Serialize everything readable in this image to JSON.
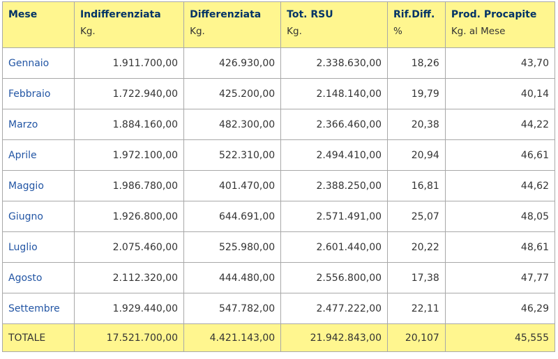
{
  "headers": [
    {
      "title": "Mese",
      "unit": ""
    },
    {
      "title": "Indifferenziata",
      "unit": "Kg."
    },
    {
      "title": "Differenziata",
      "unit": "Kg."
    },
    {
      "title": "Tot. RSU",
      "unit": "Kg."
    },
    {
      "title": "Rif.Diff.",
      "unit": "%"
    },
    {
      "title": "Prod. Procapite",
      "unit": "Kg. al Mese"
    }
  ],
  "rows": [
    {
      "mese": "Gennaio",
      "indiff": "1.911.700,00",
      "diff": "426.930,00",
      "tot": "2.338.630,00",
      "rif": "18,26",
      "prod": "43,70"
    },
    {
      "mese": "Febbraio",
      "indiff": "1.722.940,00",
      "diff": "425.200,00",
      "tot": "2.148.140,00",
      "rif": "19,79",
      "prod": "40,14"
    },
    {
      "mese": "Marzo",
      "indiff": "1.884.160,00",
      "diff": "482.300,00",
      "tot": "2.366.460,00",
      "rif": "20,38",
      "prod": "44,22"
    },
    {
      "mese": "Aprile",
      "indiff": "1.972.100,00",
      "diff": "522.310,00",
      "tot": "2.494.410,00",
      "rif": "20,94",
      "prod": "46,61"
    },
    {
      "mese": "Maggio",
      "indiff": "1.986.780,00",
      "diff": "401.470,00",
      "tot": "2.388.250,00",
      "rif": "16,81",
      "prod": "44,62"
    },
    {
      "mese": "Giugno",
      "indiff": "1.926.800,00",
      "diff": "644.691,00",
      "tot": "2.571.491,00",
      "rif": "25,07",
      "prod": "48,05"
    },
    {
      "mese": "Luglio",
      "indiff": "2.075.460,00",
      "diff": "525.980,00",
      "tot": "2.601.440,00",
      "rif": "20,22",
      "prod": "48,61"
    },
    {
      "mese": "Agosto",
      "indiff": "2.112.320,00",
      "diff": "444.480,00",
      "tot": "2.556.800,00",
      "rif": "17,38",
      "prod": "47,77"
    },
    {
      "mese": "Settembre",
      "indiff": "1.929.440,00",
      "diff": "547.782,00",
      "tot": "2.477.222,00",
      "rif": "22,11",
      "prod": "46,29"
    }
  ],
  "totals": {
    "label": "TOTALE",
    "indiff": "17.521.700,00",
    "diff": "4.421.143,00",
    "tot": "21.942.843,00",
    "rif": "20,107",
    "prod": "45,555"
  },
  "colors": {
    "header_bg": "#fff68f",
    "header_title": "#003366",
    "month_link": "#2255a4",
    "border": "#a8a8a8"
  }
}
